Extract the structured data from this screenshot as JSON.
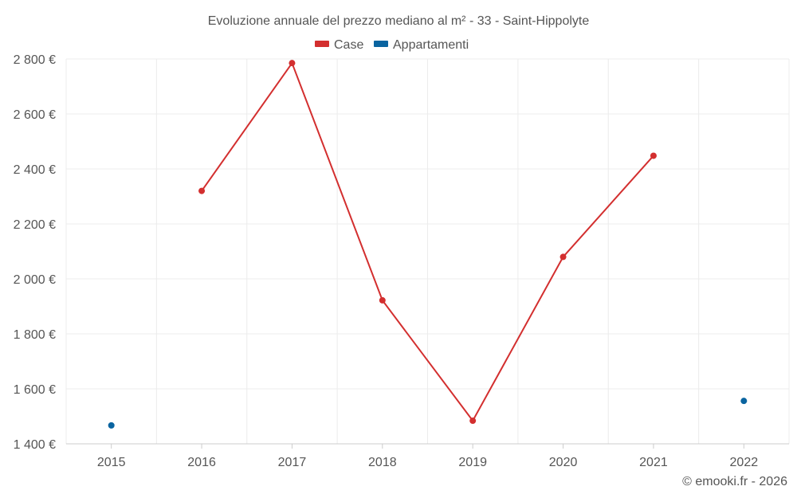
{
  "chart_data": {
    "type": "line",
    "title": "Evoluzione annuale del prezzo mediano al m² - 33 - Saint-Hippolyte",
    "categories": [
      "2015",
      "2016",
      "2017",
      "2018",
      "2019",
      "2020",
      "2021",
      "2022"
    ],
    "series": [
      {
        "name": "Case",
        "color": "#d32f2f",
        "values": [
          null,
          2320,
          2785,
          1922,
          1484,
          2080,
          2448,
          null
        ]
      },
      {
        "name": "Appartamenti",
        "color": "#0a64a0",
        "values": [
          1467,
          null,
          null,
          null,
          null,
          null,
          null,
          1556
        ]
      }
    ],
    "y_ticks": [
      1400,
      1600,
      1800,
      2000,
      2200,
      2400,
      2600,
      2800
    ],
    "y_tick_labels": [
      "1 400 €",
      "1 600 €",
      "1 800 €",
      "2 000 €",
      "2 200 €",
      "2 400 €",
      "2 600 €",
      "2 800 €"
    ],
    "ylim": [
      1400,
      2800
    ],
    "xlabel": "",
    "ylabel": "",
    "legend_position": "top-center",
    "grid": true
  },
  "credit": "© emooki.fr - 2026"
}
